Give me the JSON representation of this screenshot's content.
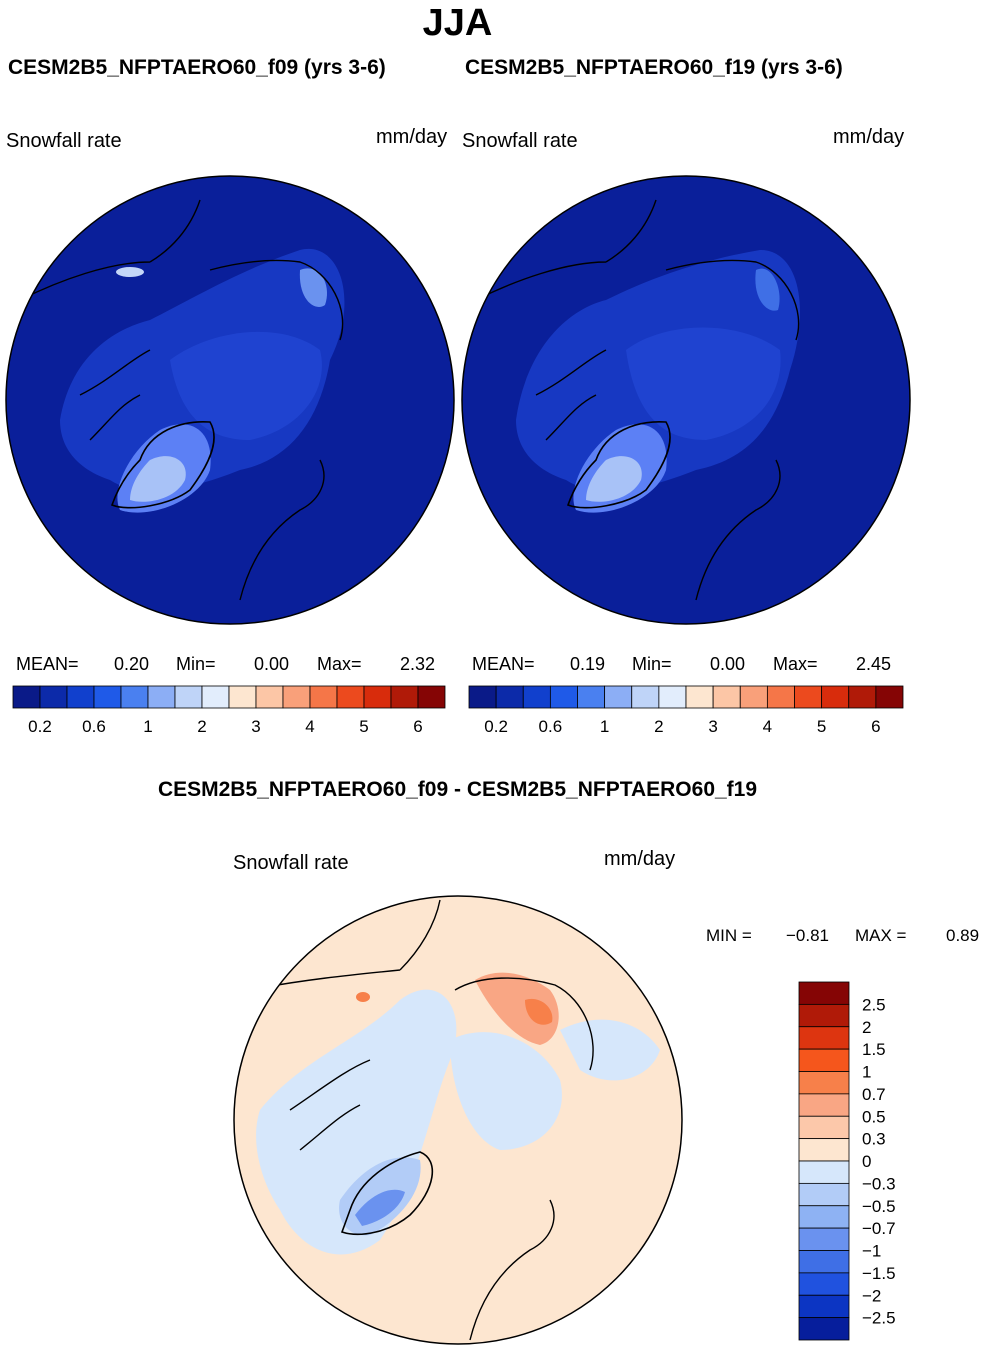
{
  "season": "JJA",
  "colors": {
    "ocean": "#0a1f9a",
    "land": "#1a3dc9",
    "ice": "#5c80f5",
    "coast": "#000000",
    "diff_base": "#fde6d0",
    "diff_neg": "#d6e7fb"
  },
  "panels": [
    {
      "title": "CESM2B5_NFPTAERO60_f09 (yrs 3-6)",
      "variable": "Snowfall rate",
      "units": "mm/day",
      "mean_label": "MEAN=",
      "mean": "0.20",
      "min_label": "Min=",
      "min": "0.00",
      "max_label": "Max=",
      "max": "2.32"
    },
    {
      "title": "CESM2B5_NFPTAERO60_f19 (yrs 3-6)",
      "variable": "Snowfall rate",
      "units": "mm/day",
      "mean_label": "MEAN=",
      "mean": "0.19",
      "min_label": "Min=",
      "min": "0.00",
      "max_label": "Max=",
      "max": "2.45"
    }
  ],
  "abs_colorbar": {
    "colors": [
      "#0a1a88",
      "#0c2aa9",
      "#1140cd",
      "#1f5ae8",
      "#4a80f0",
      "#8caef5",
      "#bfd4f8",
      "#e2edfc",
      "#fde6d0",
      "#fcc6a6",
      "#f9a07a",
      "#f57648",
      "#ec4a1e",
      "#d82c0c",
      "#b01a08",
      "#850505"
    ],
    "tick_labels": [
      "0.2",
      "0.6",
      "1",
      "2",
      "3",
      "4",
      "5",
      "6"
    ]
  },
  "diff": {
    "title": "CESM2B5_NFPTAERO60_f09 - CESM2B5_NFPTAERO60_f19",
    "variable": "Snowfall rate",
    "units": "mm/day",
    "min_label": "MIN =",
    "min": "−0.81",
    "max_label": "MAX =",
    "max": "0.89"
  },
  "diff_colorbar": {
    "colors": [
      "#850505",
      "#b01a08",
      "#dd3510",
      "#f5561c",
      "#f7804a",
      "#f9a684",
      "#fcc8aa",
      "#fde6d0",
      "#d6e7fb",
      "#b2ccf7",
      "#8eb2f3",
      "#6a92ef",
      "#3f6fe6",
      "#2052df",
      "#0c35c3",
      "#061e9c"
    ],
    "tick_labels": [
      "2.5",
      "2",
      "1.5",
      "1",
      "0.7",
      "0.5",
      "0.3",
      "0",
      "−0.3",
      "−0.5",
      "−0.7",
      "−1",
      "−1.5",
      "−2",
      "−2.5"
    ]
  },
  "chart_data": [
    {
      "type": "heatmap",
      "title": "CESM2B5_NFPTAERO60_f09 (yrs 3-6)",
      "variable": "Snowfall rate",
      "units": "mm/day",
      "projection": "north polar stereographic",
      "season": "JJA",
      "mean": 0.2,
      "min": 0.0,
      "max": 2.32,
      "levels": [
        0.2,
        0.4,
        0.6,
        0.8,
        1,
        1.5,
        2,
        2.5,
        3,
        3.5,
        4,
        4.5,
        5,
        5.5,
        6
      ]
    },
    {
      "type": "heatmap",
      "title": "CESM2B5_NFPTAERO60_f19 (yrs 3-6)",
      "variable": "Snowfall rate",
      "units": "mm/day",
      "projection": "north polar stereographic",
      "season": "JJA",
      "mean": 0.19,
      "min": 0.0,
      "max": 2.45,
      "levels": [
        0.2,
        0.4,
        0.6,
        0.8,
        1,
        1.5,
        2,
        2.5,
        3,
        3.5,
        4,
        4.5,
        5,
        5.5,
        6
      ]
    },
    {
      "type": "heatmap",
      "title": "CESM2B5_NFPTAERO60_f09 - CESM2B5_NFPTAERO60_f19",
      "variable": "Snowfall rate",
      "units": "mm/day",
      "projection": "north polar stereographic",
      "season": "JJA",
      "min": -0.81,
      "max": 0.89,
      "levels": [
        -2.5,
        -2,
        -1.5,
        -1,
        -0.7,
        -0.5,
        -0.3,
        0,
        0.3,
        0.5,
        0.7,
        1,
        1.5,
        2,
        2.5
      ]
    }
  ]
}
